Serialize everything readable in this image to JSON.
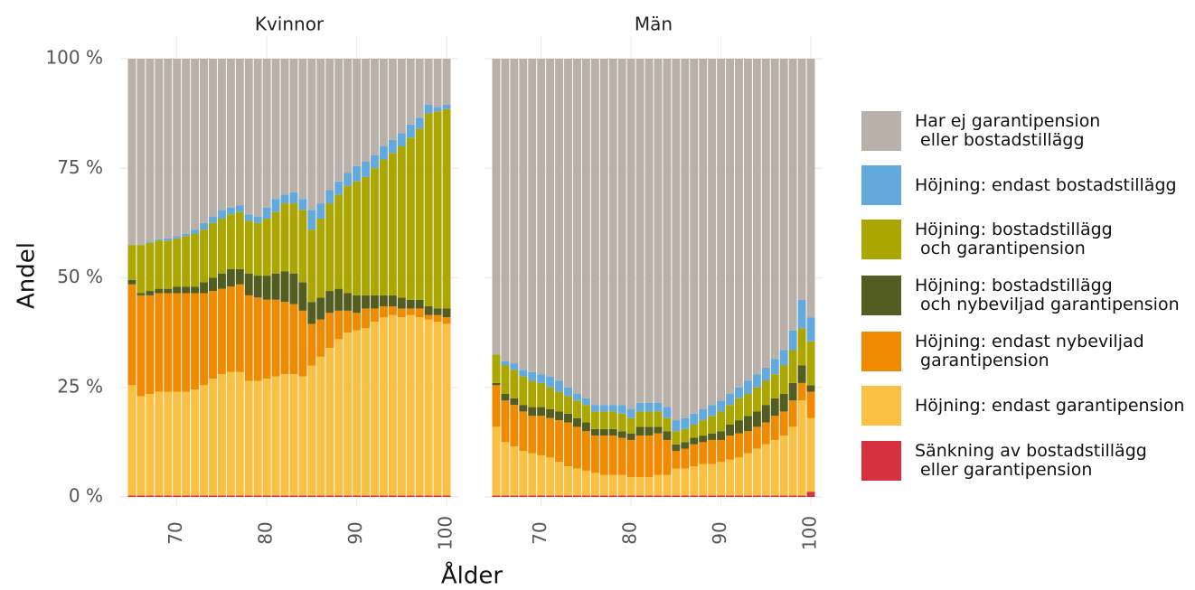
{
  "chart_data": [
    {
      "type": "stacked_bar",
      "title": "Kvinnor",
      "y_label": "Andel",
      "x_label": "Ålder",
      "x": [
        65,
        66,
        67,
        68,
        69,
        70,
        71,
        72,
        73,
        74,
        75,
        76,
        77,
        78,
        79,
        80,
        81,
        82,
        83,
        84,
        85,
        86,
        87,
        88,
        89,
        90,
        91,
        92,
        93,
        94,
        95,
        96,
        97,
        98,
        99,
        100
      ],
      "xlim": [
        64.5,
        100.5
      ],
      "xticks": [
        70,
        80,
        90,
        100
      ],
      "ylim": [
        0,
        100
      ],
      "yticks": [
        {
          "value": 0,
          "label": "0 %"
        },
        {
          "value": 25,
          "label": "25 %"
        },
        {
          "value": 50,
          "label": "50 %"
        },
        {
          "value": 75,
          "label": "75 %"
        },
        {
          "value": 100,
          "label": "100 %"
        }
      ],
      "grid": true,
      "series": [
        {
          "name": "Sänkning av bostadstillägg\n eller garantipension",
          "color": "#d7303f",
          "values": [
            0.3,
            0.3,
            0.3,
            0.3,
            0.3,
            0.3,
            0.3,
            0.3,
            0.3,
            0.3,
            0.3,
            0.3,
            0.3,
            0.3,
            0.3,
            0.3,
            0.3,
            0.3,
            0.3,
            0.3,
            0.3,
            0.3,
            0.3,
            0.3,
            0.3,
            0.3,
            0.3,
            0.3,
            0.3,
            0.3,
            0.3,
            0.3,
            0.3,
            0.3,
            0.3,
            0.3
          ]
        },
        {
          "name": "Höjning: endast garantipension",
          "color": "#f9c043",
          "values": [
            25.2,
            22.7,
            23.2,
            23.7,
            23.7,
            23.7,
            23.7,
            24.2,
            25.2,
            26.7,
            27.7,
            28.2,
            28.2,
            26.2,
            26.2,
            26.7,
            27.2,
            27.7,
            27.7,
            27.2,
            29.7,
            31.7,
            33.7,
            35.7,
            37.2,
            37.7,
            38.2,
            39.7,
            40.7,
            41.2,
            40.7,
            41.2,
            40.7,
            40.2,
            39.7,
            39.2
          ]
        },
        {
          "name": "Höjning: endast nybeviljad\n garantipension",
          "color": "#f08a00",
          "values": [
            23,
            23,
            22.5,
            22.5,
            22.5,
            22.5,
            22.5,
            22,
            21,
            20,
            19.5,
            19.5,
            20,
            19.5,
            19,
            18,
            17.5,
            16.5,
            16,
            15,
            9.5,
            8.5,
            8,
            6.5,
            5,
            4,
            4.5,
            3,
            2.5,
            2,
            2,
            1.5,
            2,
            1,
            1.5,
            1.5
          ]
        },
        {
          "name": "Höjning: bostadstillägg\n och nybeviljad garantipension",
          "color": "#535d22",
          "values": [
            1,
            0.5,
            1,
            1,
            1,
            1.5,
            1.5,
            1.5,
            2.5,
            3,
            3.5,
            4,
            3.5,
            5,
            5,
            5.5,
            6,
            7,
            7,
            6.5,
            5,
            5,
            5,
            5,
            4,
            4,
            3,
            3,
            2.5,
            2.5,
            2.5,
            2,
            2,
            2,
            1.5,
            2
          ]
        },
        {
          "name": "Höjning: bostadstillägg\n och garantipension",
          "color": "#aba700",
          "values": [
            8,
            11,
            11,
            11,
            11,
            11,
            11.5,
            12,
            12,
            12.5,
            12.5,
            12.5,
            13,
            12,
            12,
            13,
            14,
            15.5,
            16,
            16.5,
            16.5,
            18,
            20,
            21.5,
            24.5,
            26,
            27,
            29,
            31,
            32.5,
            34.5,
            37,
            39,
            44,
            45,
            45.5
          ]
        },
        {
          "name": "Höjning: endast bostadstillägg",
          "color": "#64a9dd",
          "values": [
            0,
            0,
            0.3,
            0.3,
            0.5,
            0.5,
            0.5,
            1,
            1.5,
            1.5,
            2,
            1.5,
            1.5,
            1.5,
            1.5,
            2.5,
            3,
            2,
            2.5,
            2.5,
            4.5,
            3.5,
            3,
            3,
            3,
            3.5,
            3.5,
            3,
            3,
            3,
            3,
            3,
            2.5,
            2,
            1,
            1
          ]
        },
        {
          "name": "Har ej garantipension\n eller bostadstillägg",
          "color": "#b9b1a9",
          "values": [
            42.5,
            42.5,
            41.7,
            41.2,
            41,
            40.5,
            40,
            39,
            37.5,
            36,
            34.5,
            34,
            33.5,
            35.5,
            36,
            34,
            32,
            31,
            30.5,
            32,
            34.5,
            33,
            30,
            28,
            26,
            24.5,
            23.5,
            22,
            20,
            18.5,
            17,
            15,
            13.5,
            10.5,
            11,
            10.5
          ]
        }
      ]
    },
    {
      "type": "stacked_bar",
      "title": "Män",
      "x": [
        65,
        66,
        67,
        68,
        69,
        70,
        71,
        72,
        73,
        74,
        75,
        76,
        77,
        78,
        79,
        80,
        81,
        82,
        83,
        84,
        85,
        86,
        87,
        88,
        89,
        90,
        91,
        92,
        93,
        94,
        95,
        96,
        97,
        98,
        99,
        100
      ],
      "xlim": [
        64.5,
        100.5
      ],
      "xticks": [
        70,
        80,
        90,
        100
      ],
      "ylim": [
        0,
        100
      ],
      "grid": true,
      "series": [
        {
          "name": "Sänkning av bostadstillägg\n eller garantipension",
          "color": "#d7303f",
          "values": [
            0.3,
            0.3,
            0.3,
            0.3,
            0.3,
            0.3,
            0.3,
            0.3,
            0.3,
            0.3,
            0.3,
            0.3,
            0.3,
            0.3,
            0.3,
            0.3,
            0.3,
            0.3,
            0.3,
            0.3,
            0.3,
            0.3,
            0.3,
            0.3,
            0.3,
            0.3,
            0.3,
            0.3,
            0.3,
            0.3,
            0.3,
            0.3,
            0.3,
            0.3,
            0.3,
            1.2
          ]
        },
        {
          "name": "Höjning: endast garantipension",
          "color": "#f9c043",
          "values": [
            15.7,
            12.2,
            11.2,
            10.2,
            9.7,
            9.2,
            8.7,
            7.7,
            6.7,
            6.2,
            5.7,
            5.2,
            4.7,
            4.7,
            4.7,
            4.2,
            4.2,
            4.2,
            4.7,
            4.7,
            6.2,
            6.2,
            6.7,
            7.2,
            7.2,
            7.7,
            8.2,
            8.7,
            9.7,
            10.7,
            11.7,
            12.7,
            13.7,
            15.7,
            21.7,
            16.8
          ]
        },
        {
          "name": "Höjning: endast nybeviljad\n garantipension",
          "color": "#f08a00",
          "values": [
            9.5,
            9.5,
            9.5,
            9,
            8.5,
            9,
            9,
            9.5,
            10,
            9.5,
            9,
            8.5,
            9,
            9,
            8.5,
            8.5,
            9.5,
            9.5,
            9.5,
            8,
            4,
            4.5,
            5,
            5,
            5.5,
            5,
            5.5,
            5.5,
            5,
            5,
            5,
            5.5,
            5.5,
            6,
            4,
            6
          ]
        },
        {
          "name": "Höjning: bostadstillägg\n och nybeviljad garantipension",
          "color": "#535d22",
          "values": [
            0.5,
            1.5,
            1.5,
            1.5,
            2,
            2,
            2,
            2,
            2,
            2,
            2,
            1.5,
            1.5,
            1.5,
            1.5,
            1.5,
            2,
            2,
            1.5,
            2,
            1.5,
            1.5,
            1.5,
            1.5,
            1.5,
            2,
            2.5,
            3,
            3.5,
            3.5,
            4,
            4,
            4,
            4,
            4,
            1.5
          ]
        },
        {
          "name": "Höjning: bostadstillägg\n och garantipension",
          "color": "#aba700",
          "values": [
            6.5,
            6.5,
            6.5,
            6.5,
            6,
            5.5,
            5,
            4.5,
            4,
            4,
            4,
            4,
            4,
            4,
            4,
            3.5,
            3.5,
            3.5,
            3.5,
            3,
            3,
            3,
            3,
            3.5,
            4,
            4.5,
            4.5,
            5,
            5,
            5.5,
            5.5,
            5.5,
            6.5,
            7.5,
            8.5,
            10
          ]
        },
        {
          "name": "Höjning: endast bostadstillägg",
          "color": "#64a9dd",
          "values": [
            0,
            1,
            1.5,
            1.5,
            2,
            2,
            2.5,
            2.5,
            2,
            1.5,
            1.5,
            1.5,
            1.5,
            1.5,
            2,
            2,
            2,
            2,
            2,
            2.5,
            2.5,
            2.5,
            2.5,
            2.5,
            2.5,
            2.5,
            2.5,
            2.5,
            3,
            3,
            3,
            3.5,
            3.5,
            4.5,
            6.5,
            5.5
          ]
        },
        {
          "name": "Har ej garantipension\n eller bostadstillägg",
          "color": "#b9b1a9",
          "values": [
            67.5,
            69,
            69.5,
            71,
            71.5,
            72,
            72.5,
            73.5,
            75,
            76.5,
            77.5,
            79,
            79,
            79,
            79,
            80,
            78.5,
            78.5,
            78.5,
            79.5,
            82.5,
            82,
            81,
            80,
            79,
            78,
            76.5,
            75,
            73.5,
            72,
            70.5,
            68.5,
            66.5,
            62,
            55,
            59
          ]
        }
      ]
    }
  ]
}
